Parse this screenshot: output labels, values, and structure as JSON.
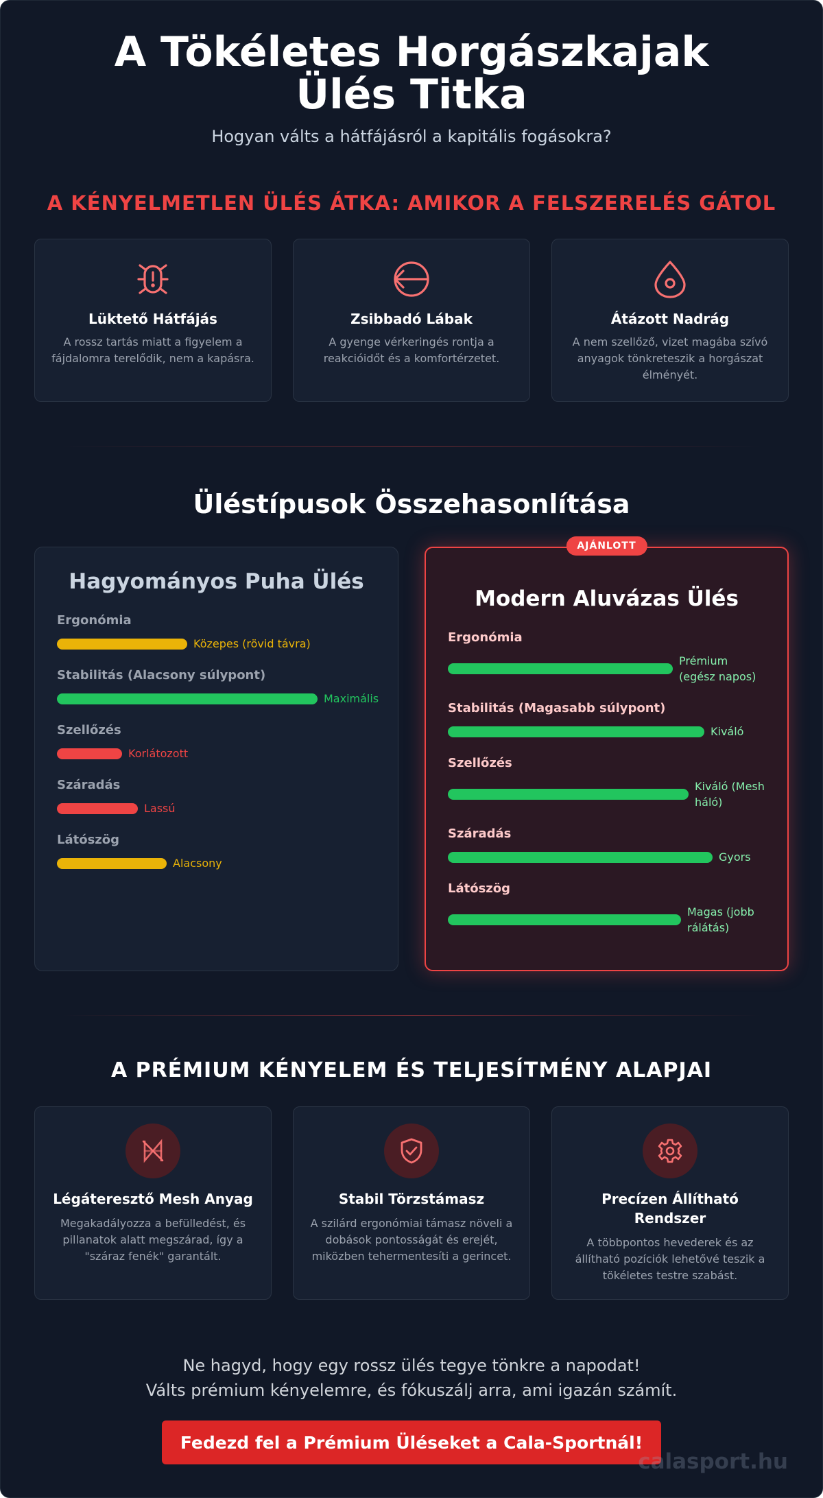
{
  "header": {
    "title": "A Tökéletes Horgászkajak Ülés Titka",
    "subtitle": "Hogyan válts a hátfájásról a kapitális fogásokra?"
  },
  "problems": {
    "title": "A KÉNYELMETLEN ÜLÉS ÁTKA: AMIKOR A FELSZERELÉS GÁTOL",
    "items": [
      {
        "icon": "bug-alert-icon",
        "title": "Lüktető Hátfájás",
        "text": "A rossz tartás miatt a figyelem a fájdalomra terelődik, nem a kapásra."
      },
      {
        "icon": "circle-arrow-left-icon",
        "title": "Zsibbadó Lábak",
        "text": "A gyenge vérkeringés rontja a reakcióidőt és a komfortérzetet."
      },
      {
        "icon": "water-drop-icon",
        "title": "Átázott Nadrág",
        "text": "A nem szellőző, vizet magába szívó anyagok tönkreteszik a horgászat élményét."
      }
    ]
  },
  "comparison": {
    "title": "Üléstípusok Összehasonlítása",
    "traditional": {
      "title": "Hagyományos Puha Ülés",
      "attributes": [
        {
          "label": "Ergonómia",
          "level": 0.5,
          "value": "Közepes (rövid távra)",
          "color": "#eab308"
        },
        {
          "label": "Stabilitás (Alacsony súlypont)",
          "level": 1.0,
          "value": "Maximális",
          "color": "#22c55e"
        },
        {
          "label": "Szellőzés",
          "level": 0.25,
          "value": "Korlátozott",
          "color": "#ef4444"
        },
        {
          "label": "Száradás",
          "level": 0.31,
          "value": "Lassú",
          "color": "#ef4444"
        },
        {
          "label": "Látószög",
          "level": 0.42,
          "value": "Alacsony",
          "color": "#eab308"
        }
      ]
    },
    "modern": {
      "badge": "AJÁNLOTT",
      "title": "Modern Aluvázas Ülés",
      "attributes": [
        {
          "label": "Ergonómia",
          "level": 0.85,
          "value": "Prémium (egész napos)",
          "color": "#22c55e",
          "value_color": "#86efac"
        },
        {
          "label": "Stabilitás (Magasabb súlypont)",
          "level": 0.97,
          "value": "Kiváló",
          "color": "#22c55e",
          "value_color": "#86efac"
        },
        {
          "label": "Szellőzés",
          "level": 0.91,
          "value": "Kiváló (Mesh háló)",
          "color": "#22c55e",
          "value_color": "#86efac"
        },
        {
          "label": "Száradás",
          "level": 1.0,
          "value": "Gyors",
          "color": "#22c55e",
          "value_color": "#86efac"
        },
        {
          "label": "Látószög",
          "level": 0.88,
          "value": "Magas (jobb rálátás)",
          "color": "#22c55e",
          "value_color": "#86efac"
        }
      ]
    }
  },
  "features": {
    "title": "A PRÉMIUM KÉNYELEM ÉS TELJESÍTMÉNY ALAPJAI",
    "items": [
      {
        "icon": "mesh-icon",
        "title": "Légáteresztő Mesh Anyag",
        "text": "Megakadályozza a befülledést, és pillanatok alatt megszárad, így a \"száraz fenék\" garantált."
      },
      {
        "icon": "shield-check-icon",
        "title": "Stabil Törzstámasz",
        "text": "A szilárd ergonómiai támasz növeli a dobások pontosságát és erejét, miközben tehermentesíti a gerincet."
      },
      {
        "icon": "gear-icon",
        "title": "Precízen Állítható Rendszer",
        "text": "A többpontos hevederek és az állítható pozíciók lehetővé teszik a tökéletes testre szabást."
      }
    ]
  },
  "cta": {
    "line1": "Ne hagyd, hogy egy rossz ülés tegye tönkre a napodat!",
    "line2": "Válts prémium kényelemre, és fókuszálj arra, ami igazán számít.",
    "button": "Fedezd fel a Prémium Üléseket a Cala-Sportnál!"
  },
  "watermark": "calasport.hu"
}
